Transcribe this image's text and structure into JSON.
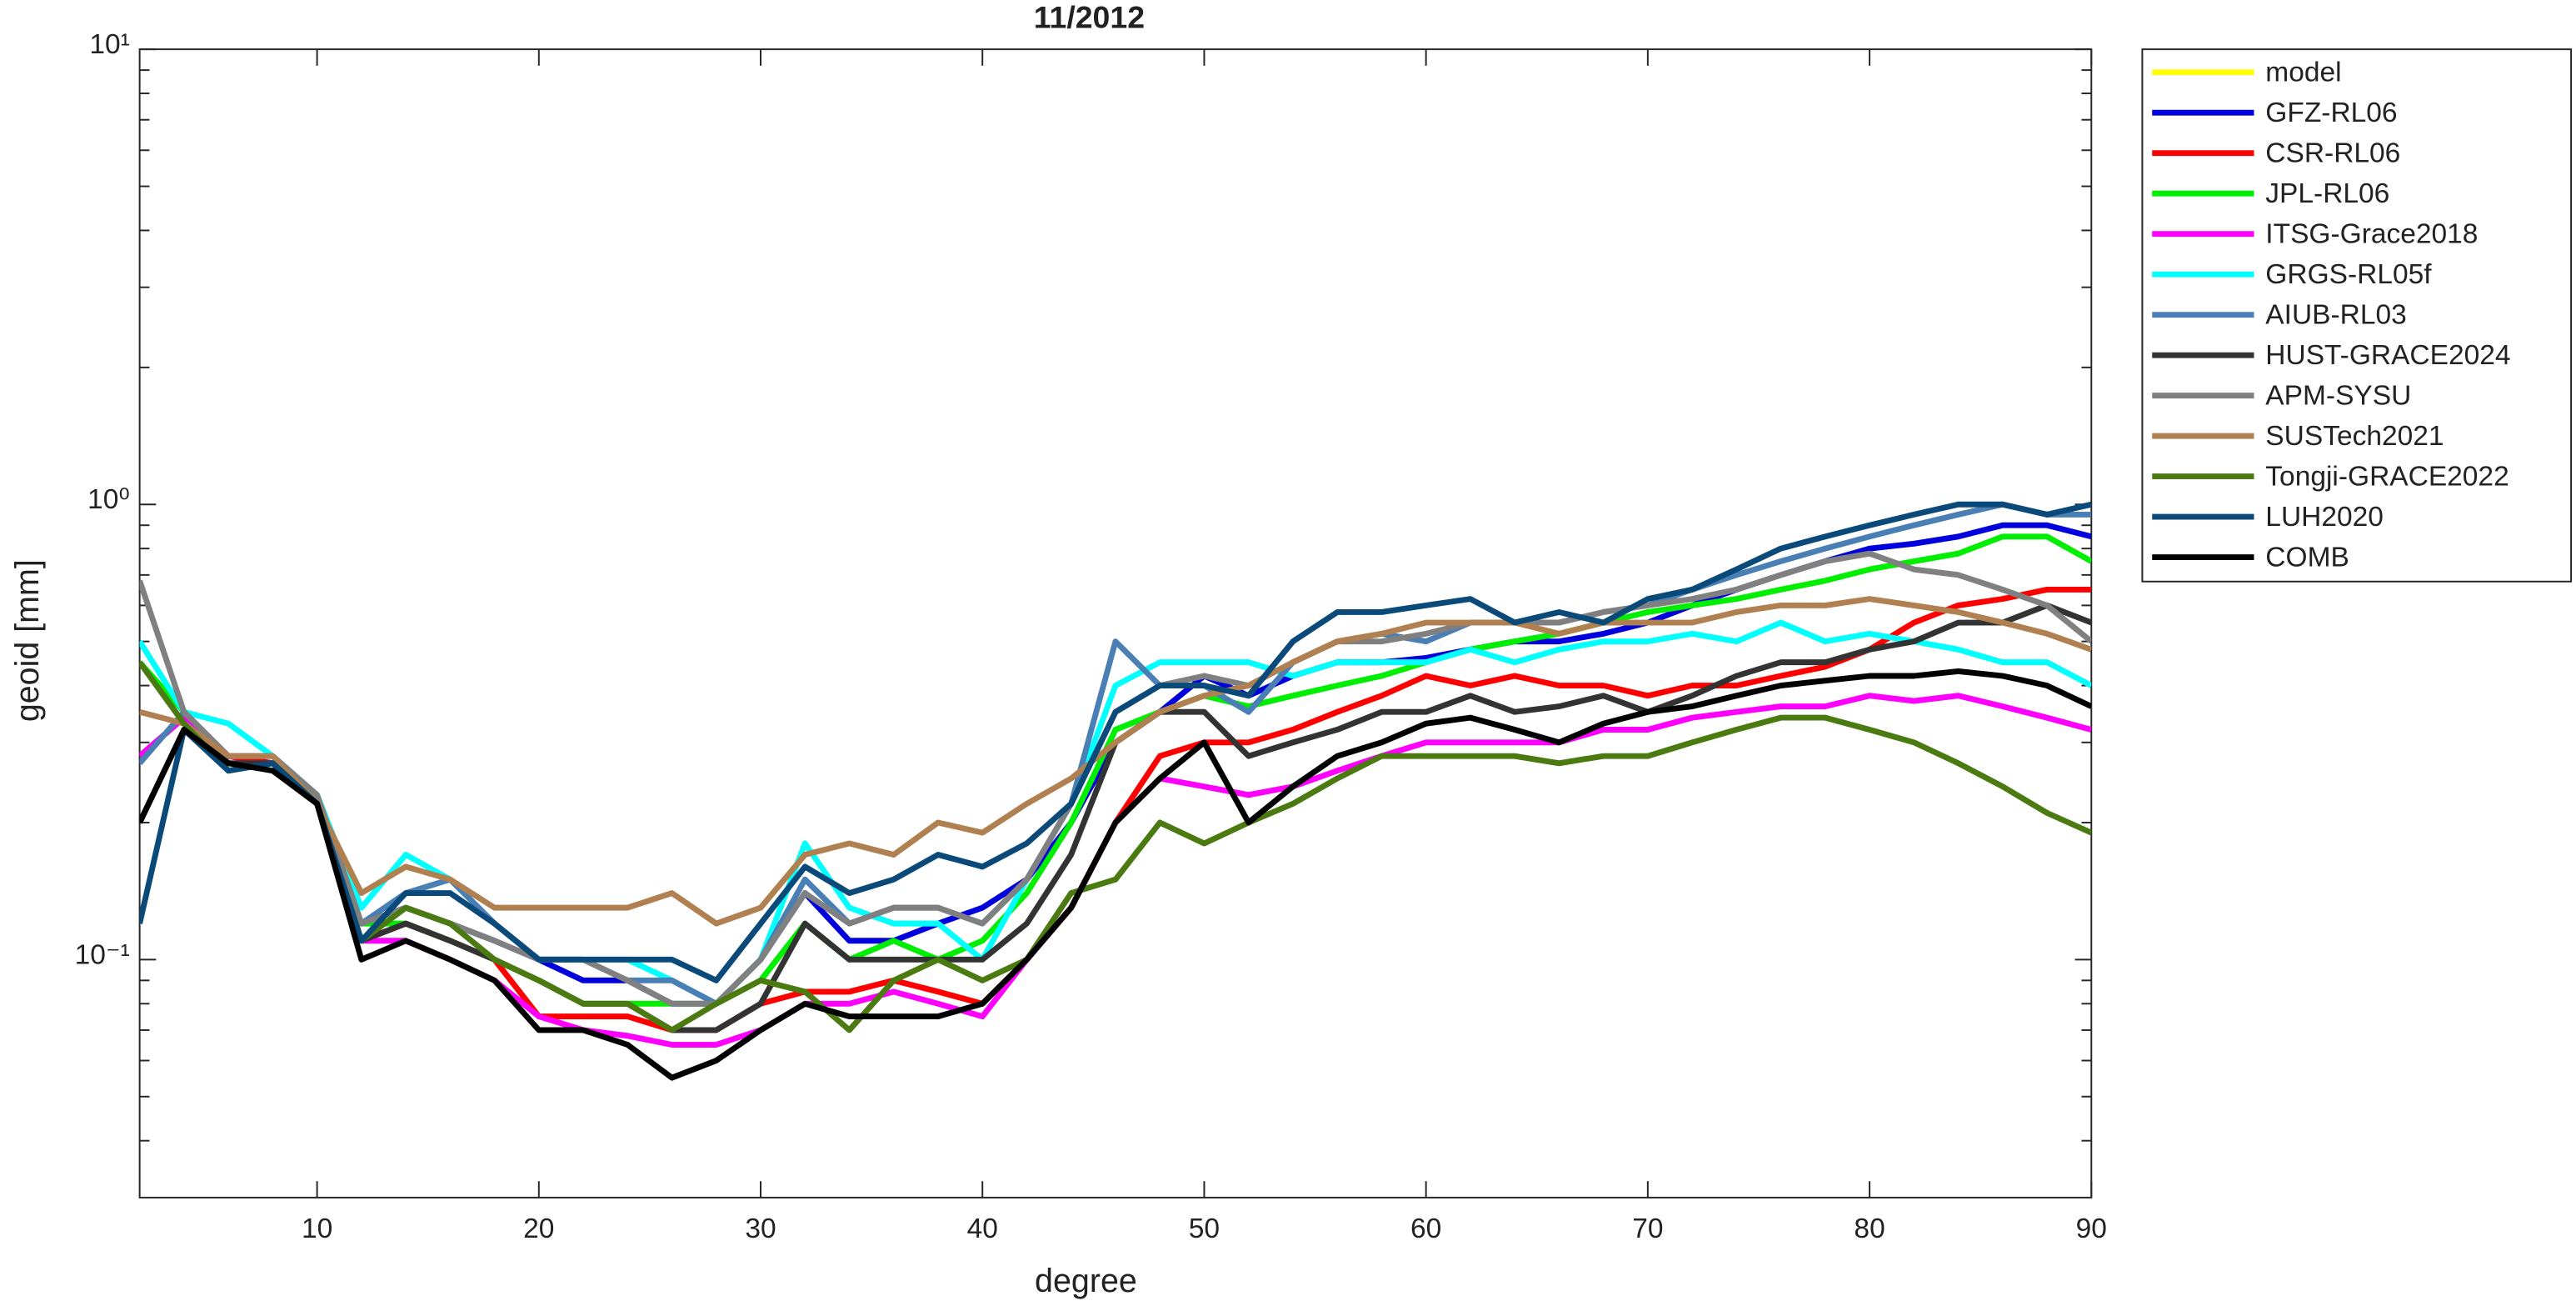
{
  "chart_data": {
    "type": "line",
    "title": "11/2012",
    "x_label": "degree",
    "y_label": "geoid [mm]",
    "log_y": true,
    "xlim": [
      2,
      90
    ],
    "ylim": [
      0.03,
      10
    ],
    "xticks": [
      10,
      20,
      30,
      40,
      50,
      60,
      70,
      80,
      90
    ],
    "yticks": [
      {
        "value": 0.1,
        "label": "10⁻¹"
      },
      {
        "value": 1,
        "label": "10⁰"
      },
      {
        "value": 10,
        "label": "10¹"
      }
    ],
    "yminorticks": [
      0.04,
      0.05,
      0.06,
      0.07,
      0.08,
      0.09,
      0.2,
      0.3,
      0.4,
      0.5,
      0.6,
      0.7,
      0.8,
      0.9,
      2,
      3,
      4,
      5,
      6,
      7,
      8,
      9
    ],
    "legend": "outside-top-right",
    "x": [
      2,
      4,
      6,
      8,
      10,
      12,
      14,
      16,
      18,
      20,
      22,
      24,
      26,
      28,
      30,
      32,
      34,
      36,
      38,
      40,
      42,
      44,
      46,
      48,
      50,
      52,
      54,
      56,
      58,
      60,
      62,
      64,
      66,
      68,
      70,
      72,
      74,
      76,
      78,
      80,
      82,
      84,
      86,
      88,
      90
    ],
    "series": [
      {
        "name": "model",
        "color": "#ffff00",
        "values": [
          null,
          null,
          null,
          null,
          null,
          null,
          null,
          null,
          null,
          null,
          null,
          null,
          null,
          null,
          null,
          null,
          null,
          null,
          null,
          null,
          null,
          null,
          null,
          null,
          null,
          null,
          null,
          null,
          null,
          null,
          null,
          null,
          null,
          null,
          null,
          null,
          null,
          null,
          null,
          null,
          null,
          null,
          null,
          null,
          null
        ]
      },
      {
        "name": "GFZ-RL06",
        "color": "#0000dd",
        "values": [
          0.28,
          0.34,
          0.28,
          0.27,
          0.22,
          0.12,
          0.13,
          0.12,
          0.11,
          0.1,
          0.09,
          0.09,
          0.08,
          0.08,
          0.1,
          0.14,
          0.11,
          0.11,
          0.12,
          0.13,
          0.15,
          0.2,
          0.3,
          0.35,
          0.42,
          0.38,
          0.42,
          0.45,
          0.45,
          0.46,
          0.48,
          0.5,
          0.5,
          0.52,
          0.55,
          0.6,
          0.65,
          0.7,
          0.75,
          0.8,
          0.82,
          0.85,
          0.9,
          0.9,
          0.85
        ]
      },
      {
        "name": "CSR-RL06",
        "color": "#ff0000",
        "values": [
          0.28,
          0.34,
          0.28,
          0.27,
          0.22,
          0.11,
          0.12,
          0.11,
          0.1,
          0.075,
          0.075,
          0.075,
          0.07,
          0.07,
          0.08,
          0.085,
          0.085,
          0.09,
          0.085,
          0.08,
          0.1,
          0.13,
          0.2,
          0.28,
          0.3,
          0.3,
          0.32,
          0.35,
          0.38,
          0.42,
          0.4,
          0.42,
          0.4,
          0.4,
          0.38,
          0.4,
          0.4,
          0.42,
          0.44,
          0.48,
          0.55,
          0.6,
          0.62,
          0.65,
          0.65
        ]
      },
      {
        "name": "JPL-RL06",
        "color": "#00ee00",
        "values": [
          0.45,
          0.35,
          0.26,
          0.27,
          0.22,
          0.12,
          0.12,
          0.11,
          0.1,
          0.09,
          0.08,
          0.08,
          0.08,
          0.08,
          0.09,
          0.12,
          0.1,
          0.11,
          0.1,
          0.11,
          0.14,
          0.2,
          0.32,
          0.35,
          0.38,
          0.36,
          0.38,
          0.4,
          0.42,
          0.45,
          0.48,
          0.5,
          0.52,
          0.55,
          0.58,
          0.6,
          0.62,
          0.65,
          0.68,
          0.72,
          0.75,
          0.78,
          0.85,
          0.85,
          0.75
        ]
      },
      {
        "name": "ITSG-Grace2018",
        "color": "#ff00ff",
        "values": [
          0.28,
          0.34,
          0.27,
          0.27,
          0.22,
          0.11,
          0.11,
          0.1,
          0.09,
          0.075,
          0.07,
          0.068,
          0.065,
          0.065,
          0.07,
          0.08,
          0.08,
          0.085,
          0.08,
          0.075,
          0.1,
          0.13,
          0.2,
          0.25,
          0.24,
          0.23,
          0.24,
          0.26,
          0.28,
          0.3,
          0.3,
          0.3,
          0.3,
          0.32,
          0.32,
          0.34,
          0.35,
          0.36,
          0.36,
          0.38,
          0.37,
          0.38,
          0.36,
          0.34,
          0.32
        ]
      },
      {
        "name": "GRGS-RL05f",
        "color": "#00ffff",
        "values": [
          0.5,
          0.35,
          0.33,
          0.28,
          0.23,
          0.13,
          0.17,
          0.15,
          0.12,
          0.1,
          0.1,
          0.1,
          0.09,
          0.08,
          0.1,
          0.18,
          0.13,
          0.12,
          0.12,
          0.1,
          0.15,
          0.22,
          0.4,
          0.45,
          0.45,
          0.45,
          0.42,
          0.45,
          0.45,
          0.45,
          0.48,
          0.45,
          0.48,
          0.5,
          0.5,
          0.52,
          0.5,
          0.55,
          0.5,
          0.52,
          0.5,
          0.48,
          0.45,
          0.45,
          0.4
        ]
      },
      {
        "name": "AIUB-RL03",
        "color": "#4a7fb5",
        "values": [
          0.27,
          0.35,
          0.28,
          0.28,
          0.23,
          0.12,
          0.14,
          0.15,
          0.12,
          0.1,
          0.1,
          0.09,
          0.09,
          0.08,
          0.1,
          0.15,
          0.12,
          0.13,
          0.13,
          0.12,
          0.15,
          0.22,
          0.5,
          0.4,
          0.4,
          0.35,
          0.45,
          0.5,
          0.52,
          0.5,
          0.55,
          0.55,
          0.55,
          0.58,
          0.6,
          0.65,
          0.7,
          0.75,
          0.8,
          0.85,
          0.9,
          0.95,
          1.0,
          0.95,
          0.95
        ]
      },
      {
        "name": "HUST-GRACE2024",
        "color": "#333333",
        "values": [
          0.2,
          0.32,
          0.27,
          0.27,
          0.22,
          0.11,
          0.12,
          0.11,
          0.1,
          0.09,
          0.08,
          0.08,
          0.07,
          0.07,
          0.08,
          0.12,
          0.1,
          0.1,
          0.1,
          0.1,
          0.12,
          0.17,
          0.3,
          0.35,
          0.35,
          0.28,
          0.3,
          0.32,
          0.35,
          0.35,
          0.38,
          0.35,
          0.36,
          0.38,
          0.35,
          0.38,
          0.42,
          0.45,
          0.45,
          0.48,
          0.5,
          0.55,
          0.55,
          0.6,
          0.55
        ]
      },
      {
        "name": "APM-SYSU",
        "color": "#808080",
        "values": [
          0.68,
          0.35,
          0.28,
          0.28,
          0.23,
          0.12,
          0.13,
          0.12,
          0.11,
          0.1,
          0.1,
          0.09,
          0.08,
          0.08,
          0.1,
          0.14,
          0.12,
          0.13,
          0.13,
          0.12,
          0.15,
          0.22,
          0.35,
          0.4,
          0.42,
          0.4,
          0.45,
          0.5,
          0.5,
          0.52,
          0.55,
          0.55,
          0.55,
          0.58,
          0.6,
          0.62,
          0.65,
          0.7,
          0.75,
          0.78,
          0.72,
          0.7,
          0.65,
          0.6,
          0.5
        ]
      },
      {
        "name": "SUSTech2021",
        "color": "#b08050",
        "values": [
          0.35,
          0.33,
          0.28,
          0.28,
          0.22,
          0.14,
          0.16,
          0.15,
          0.13,
          0.13,
          0.13,
          0.13,
          0.14,
          0.12,
          0.13,
          0.17,
          0.18,
          0.17,
          0.2,
          0.19,
          0.22,
          0.25,
          0.3,
          0.35,
          0.38,
          0.4,
          0.45,
          0.5,
          0.52,
          0.55,
          0.55,
          0.55,
          0.52,
          0.55,
          0.55,
          0.55,
          0.58,
          0.6,
          0.6,
          0.62,
          0.6,
          0.58,
          0.55,
          0.52,
          0.48
        ]
      },
      {
        "name": "Tongji-GRACE2022",
        "color": "#4a7a10",
        "values": [
          0.45,
          0.33,
          0.26,
          0.27,
          0.22,
          0.11,
          0.13,
          0.12,
          0.1,
          0.09,
          0.08,
          0.08,
          0.07,
          0.08,
          0.09,
          0.085,
          0.07,
          0.09,
          0.1,
          0.09,
          0.1,
          0.14,
          0.15,
          0.2,
          0.18,
          0.2,
          0.22,
          0.25,
          0.28,
          0.28,
          0.28,
          0.28,
          0.27,
          0.28,
          0.28,
          0.3,
          0.32,
          0.34,
          0.34,
          0.32,
          0.3,
          0.27,
          0.24,
          0.21,
          0.19
        ]
      },
      {
        "name": "LUH2020",
        "color": "#0a4a7a",
        "values": [
          0.12,
          0.32,
          0.26,
          0.27,
          0.22,
          0.11,
          0.14,
          0.14,
          0.12,
          0.1,
          0.1,
          0.1,
          0.1,
          0.09,
          0.12,
          0.16,
          0.14,
          0.15,
          0.17,
          0.16,
          0.18,
          0.22,
          0.35,
          0.4,
          0.4,
          0.38,
          0.5,
          0.58,
          0.58,
          0.6,
          0.62,
          0.55,
          0.58,
          0.55,
          0.62,
          0.65,
          0.72,
          0.8,
          0.85,
          0.9,
          0.95,
          1.0,
          1.0,
          0.95,
          1.0
        ]
      },
      {
        "name": "COMB",
        "color": "#000000",
        "values": [
          0.2,
          0.32,
          0.27,
          0.26,
          0.22,
          0.1,
          0.11,
          0.1,
          0.09,
          0.07,
          0.07,
          0.065,
          0.055,
          0.06,
          0.07,
          0.08,
          0.075,
          0.075,
          0.075,
          0.08,
          0.1,
          0.13,
          0.2,
          0.25,
          0.3,
          0.2,
          0.24,
          0.28,
          0.3,
          0.33,
          0.34,
          0.32,
          0.3,
          0.33,
          0.35,
          0.36,
          0.38,
          0.4,
          0.41,
          0.42,
          0.42,
          0.43,
          0.42,
          0.4,
          0.36
        ]
      }
    ]
  }
}
